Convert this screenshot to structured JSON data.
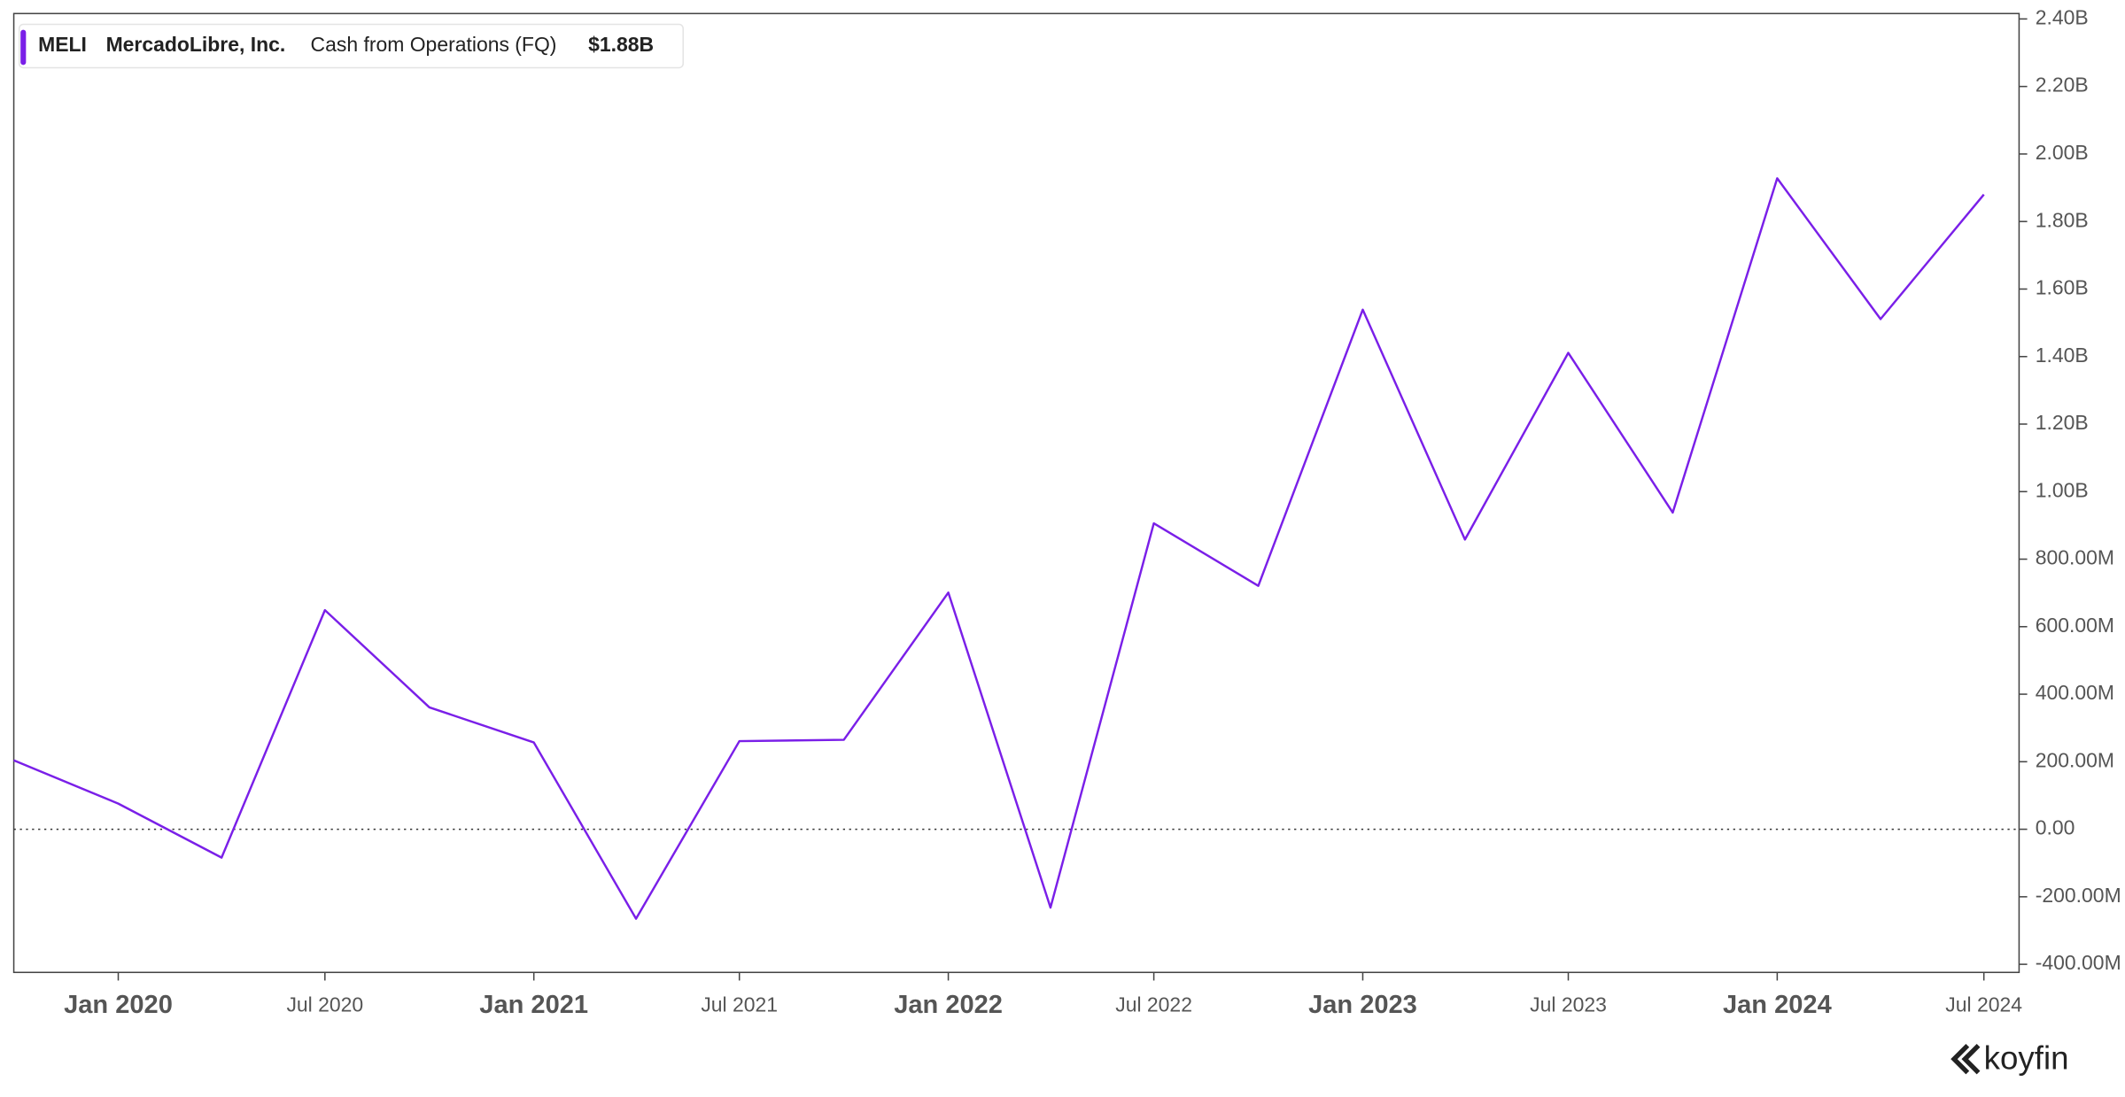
{
  "chart_data": {
    "type": "line",
    "ticker": "MELI",
    "company": "MercadoLibre, Inc.",
    "metric": "Cash from Operations (FQ)",
    "last_value": "$1.88B",
    "brand": "koyfin",
    "x": [
      "Oct 2019",
      "Jan 2020",
      "Apr 2020",
      "Jul 2020",
      "Oct 2020",
      "Jan 2021",
      "Apr 2021",
      "Jul 2021",
      "Oct 2021",
      "Jan 2022",
      "Apr 2022",
      "Jul 2022",
      "Oct 2022",
      "Jan 2023",
      "Apr 2023",
      "Jul 2023",
      "Oct 2023",
      "Jan 2024",
      "Apr 2024",
      "Jul 2024"
    ],
    "series": [
      {
        "name": "Cash from Operations (FQ)",
        "color": "#7a1fe8",
        "values": [
          204,
          76,
          -84,
          649,
          361,
          257,
          -265,
          261,
          265,
          701,
          -232,
          906,
          721,
          1539,
          858,
          1411,
          938,
          1928,
          1511,
          1880
        ]
      }
    ],
    "xlim": [
      "Oct 2019",
      "Aug 2024"
    ],
    "xticks": [
      "Jan 2020",
      "Jul 2020",
      "Jan 2021",
      "Jul 2021",
      "Jan 2022",
      "Jul 2022",
      "Jan 2023",
      "Jul 2023",
      "Jan 2024",
      "Jul 2024"
    ],
    "ylim": [
      -424,
      2416
    ],
    "yticks": [
      {
        "value": 2400,
        "label": "2.40B"
      },
      {
        "value": 2200,
        "label": "2.20B"
      },
      {
        "value": 2000,
        "label": "2.00B"
      },
      {
        "value": 1800,
        "label": "1.80B"
      },
      {
        "value": 1600,
        "label": "1.60B"
      },
      {
        "value": 1400,
        "label": "1.40B"
      },
      {
        "value": 1200,
        "label": "1.20B"
      },
      {
        "value": 1000,
        "label": "1.00B"
      },
      {
        "value": 800,
        "label": "800.00M"
      },
      {
        "value": 600,
        "label": "600.00M"
      },
      {
        "value": 400,
        "label": "400.00M"
      },
      {
        "value": 200,
        "label": "200.00M"
      },
      {
        "value": 0,
        "label": "0.00"
      },
      {
        "value": -200,
        "label": "-200.00M"
      },
      {
        "value": -400,
        "label": "-400.00M"
      }
    ]
  }
}
